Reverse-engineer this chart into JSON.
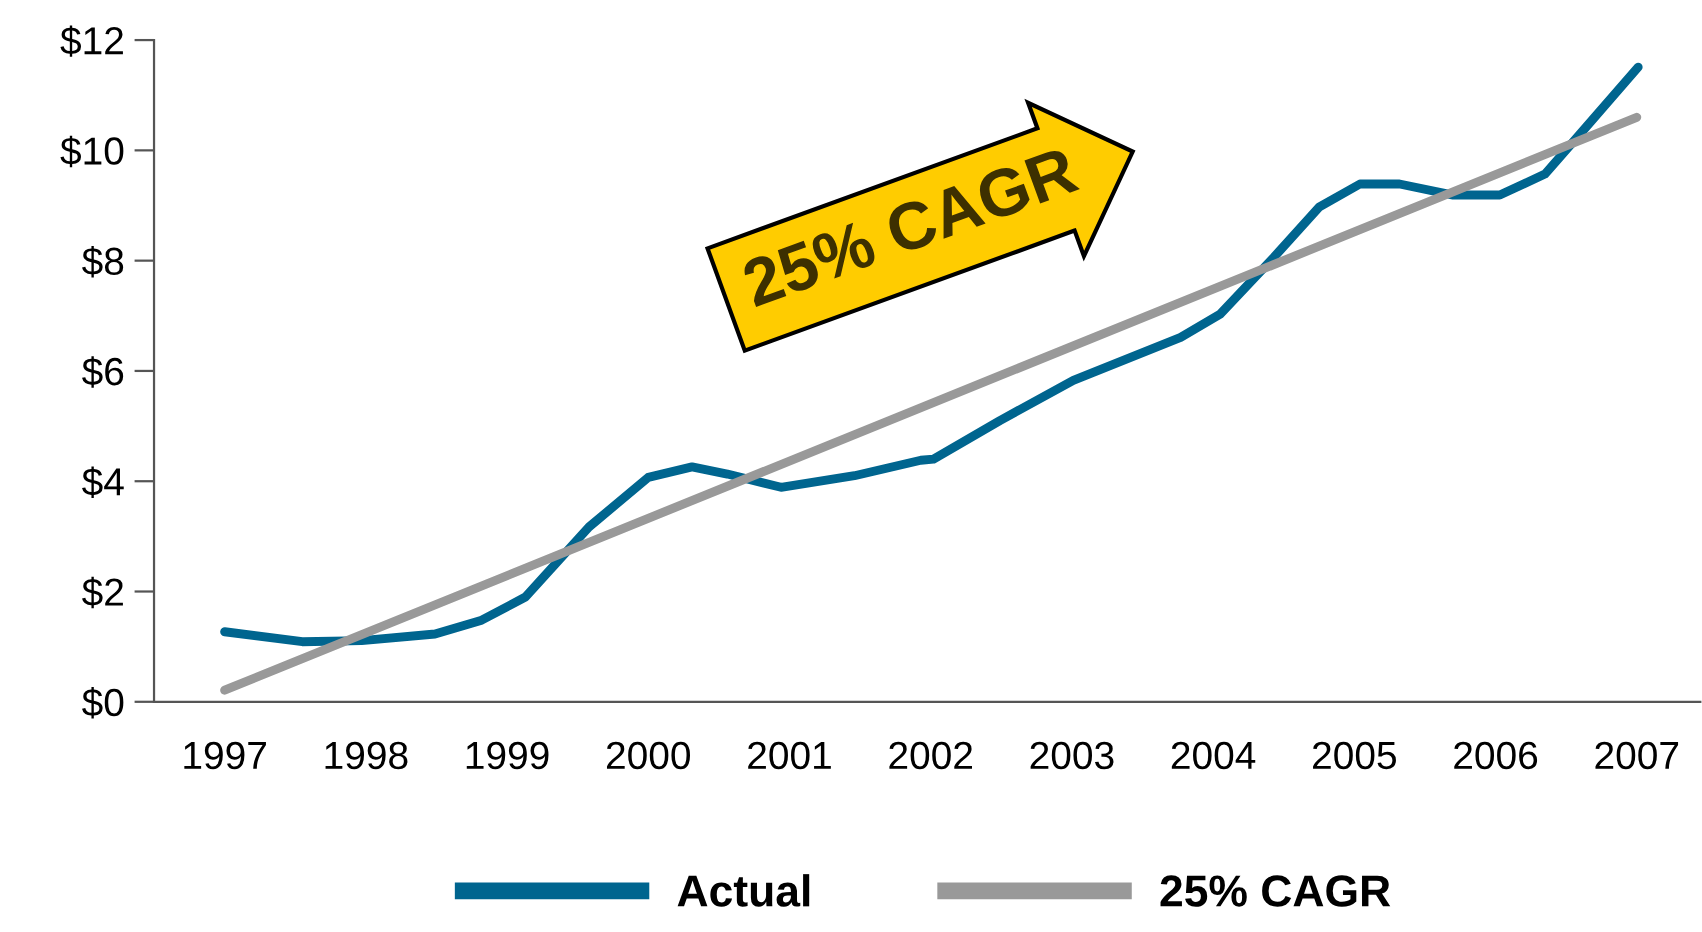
{
  "chart_data": {
    "type": "line",
    "xlim": [
      1996.5,
      2007.45
    ],
    "xticks": [
      1997,
      1998,
      1999,
      2000,
      2001,
      2002,
      2003,
      2004,
      2005,
      2006,
      2007
    ],
    "ylim": [
      0,
      12
    ],
    "yticks": [
      {
        "value": 0,
        "label": "$0"
      },
      {
        "value": 2,
        "label": "$2"
      },
      {
        "value": 4,
        "label": "$4"
      },
      {
        "value": 6,
        "label": "$6"
      },
      {
        "value": 8,
        "label": "$8"
      },
      {
        "value": 10,
        "label": "$10"
      },
      {
        "value": 12,
        "label": "$12"
      }
    ],
    "grid": false,
    "legend": "bottom",
    "marker": "none",
    "line_style": "solid",
    "annotations": [
      "25% CAGR"
    ],
    "series": [
      {
        "name": "Actual",
        "color": "#00658f",
        "x": [
          1997,
          1997.55,
          1997.97,
          1998.49,
          1998.82,
          1999.13,
          1999.58,
          2000.0,
          2000.31,
          2000.56,
          2000.94,
          2001.46,
          2001.93,
          2002.02,
          2002.49,
          2003.01,
          2003.77,
          2004.05,
          2004.43,
          2004.75,
          2005.04,
          2005.32,
          2005.7,
          2006.03,
          2006.35,
          2006.64,
          2007.01
        ],
        "values": [
          1.27,
          1.09,
          1.11,
          1.23,
          1.48,
          1.9,
          3.17,
          4.07,
          4.26,
          4.13,
          3.89,
          4.1,
          4.38,
          4.4,
          5.1,
          5.83,
          6.61,
          7.03,
          8.06,
          8.97,
          9.39,
          9.39,
          9.19,
          9.19,
          9.57,
          10.42,
          11.51
        ]
      },
      {
        "name": "25% CAGR",
        "color": "#999999",
        "x": [
          1997,
          2007
        ],
        "values": [
          0.21,
          10.6
        ]
      }
    ]
  }
}
